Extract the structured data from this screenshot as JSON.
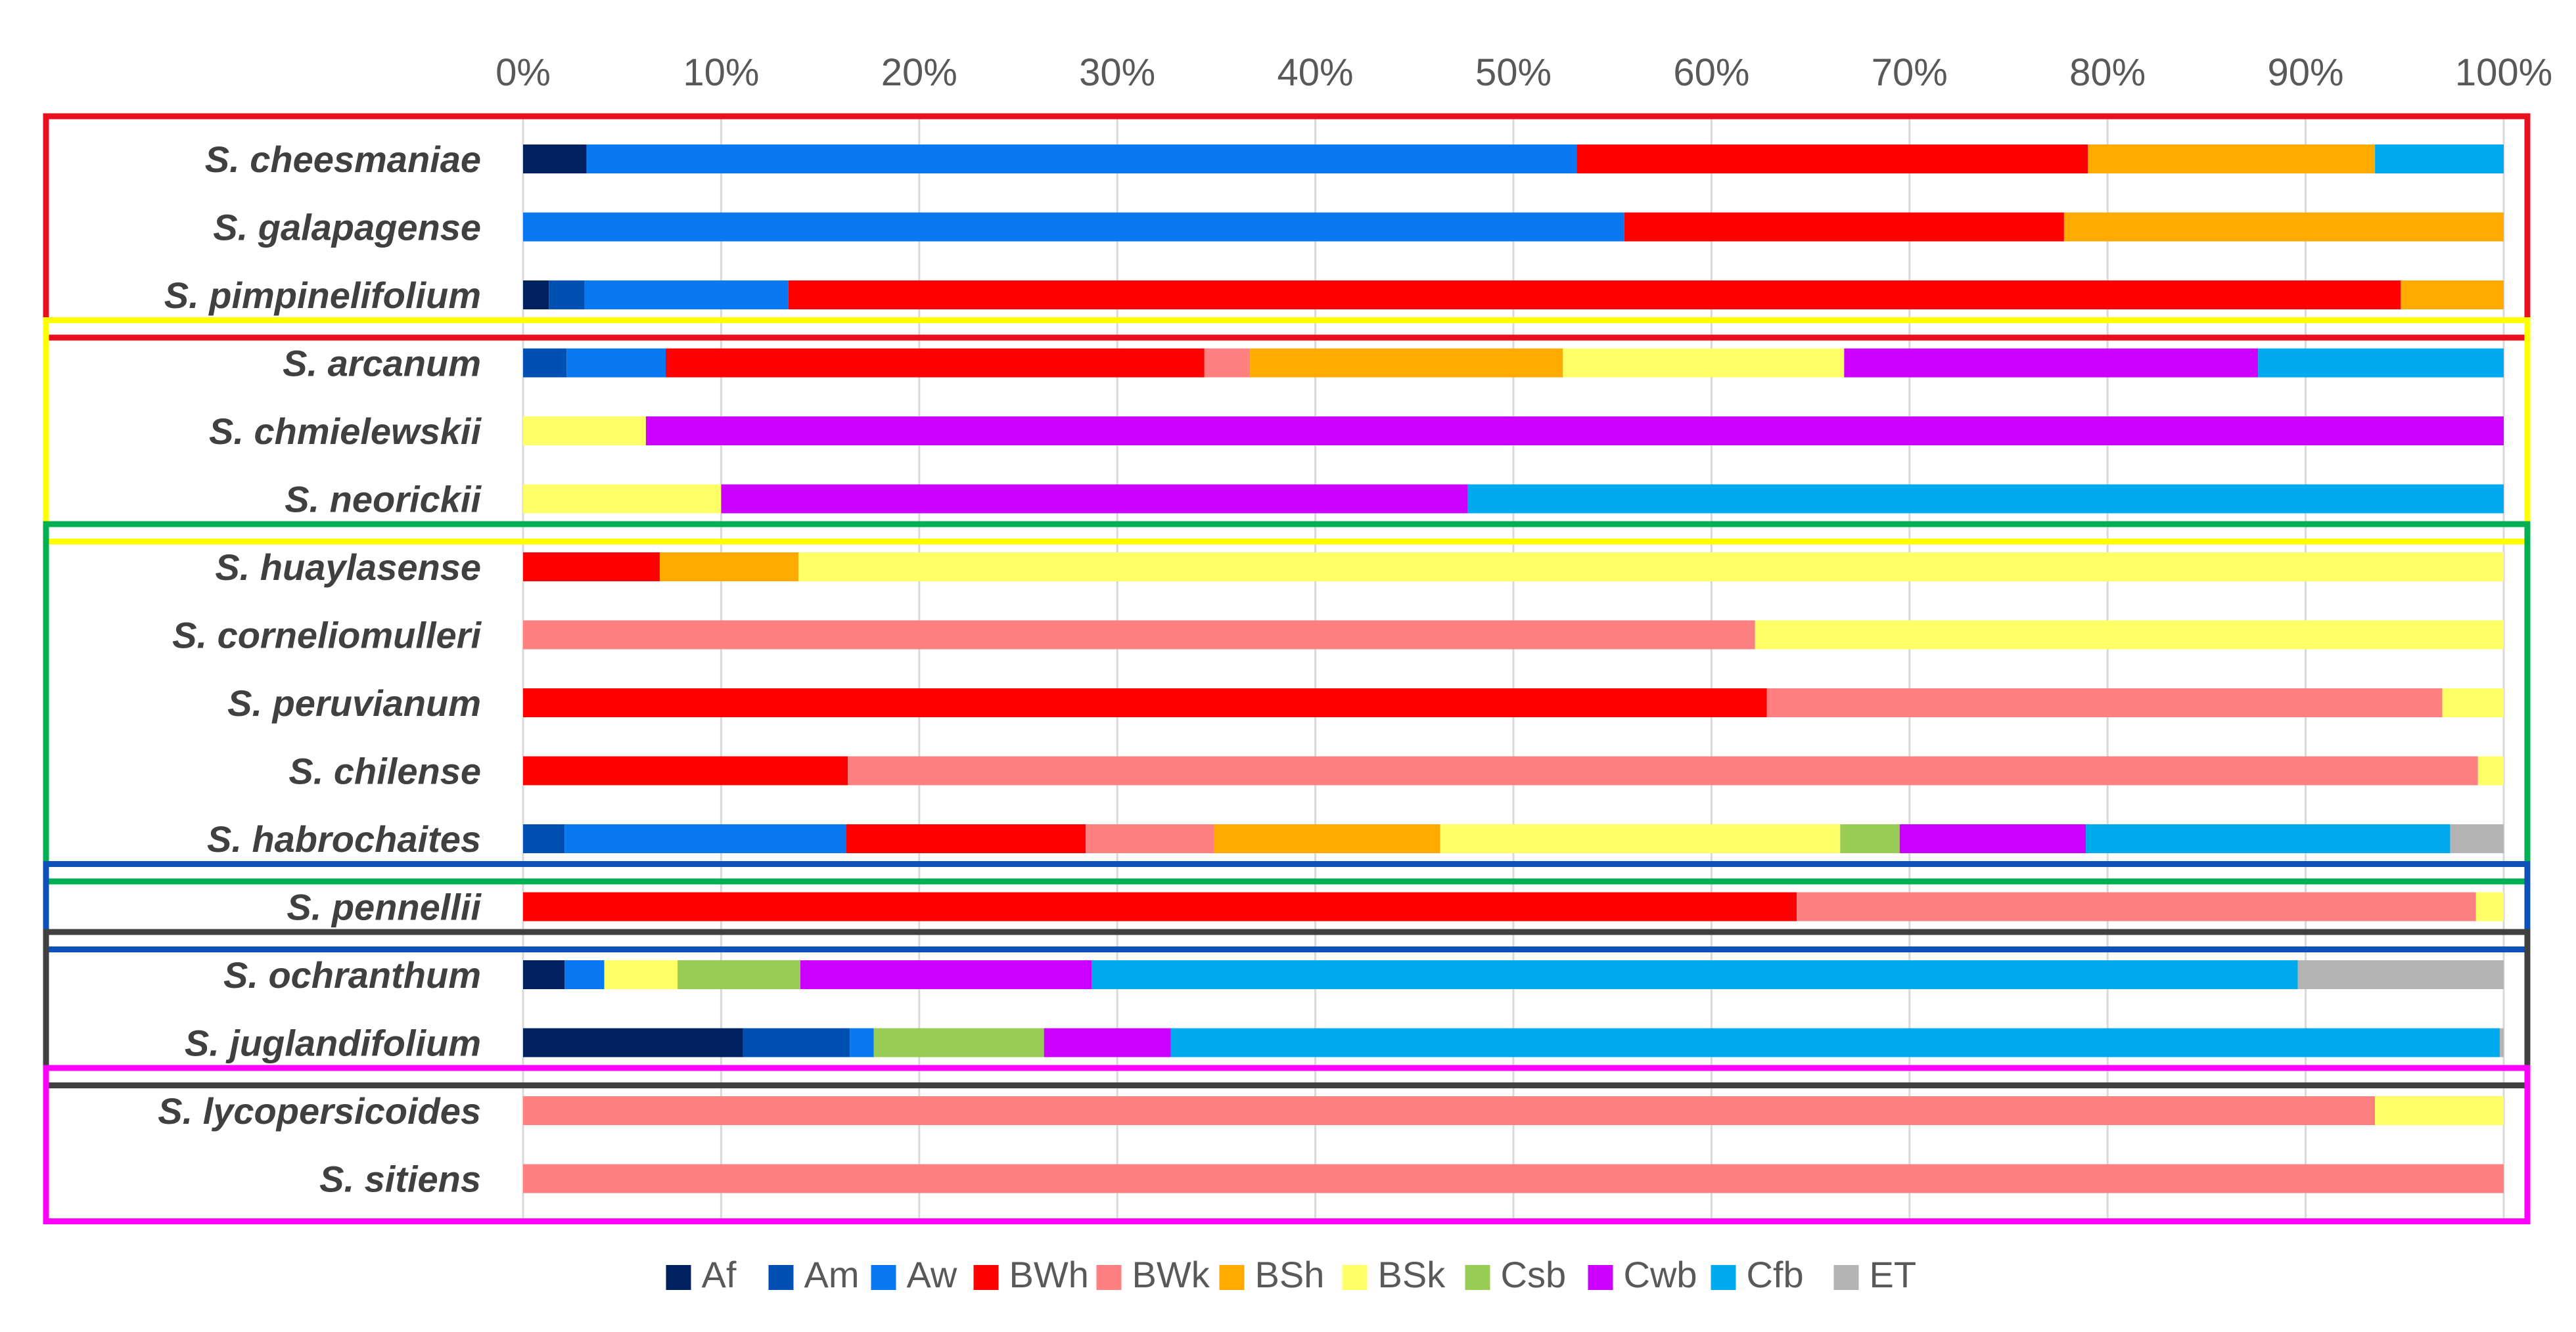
{
  "chart_data": {
    "type": "bar",
    "orientation": "horizontal",
    "stacked": "percent",
    "title": "",
    "xlabel": "",
    "ylabel": "",
    "xlim": [
      0,
      100
    ],
    "x_ticks": [
      "0%",
      "10%",
      "20%",
      "30%",
      "40%",
      "50%",
      "60%",
      "70%",
      "80%",
      "90%",
      "100%"
    ],
    "grid": true,
    "legend_position": "bottom",
    "series_colors": {
      "Af": "#002060",
      "Am": "#0050b4",
      "Aw": "#0a78f0",
      "BWh": "#ff0000",
      "BWk": "#ff8080",
      "BSh": "#ffaa00",
      "BSk": "#ffff66",
      "Csb": "#99cc55",
      "Cwb": "#cc00ff",
      "Cfb": "#00aaee",
      "ET": "#b4b4b4"
    },
    "legend": [
      "Af",
      "Am",
      "Aw",
      "BWh",
      "BWk",
      "BSh",
      "BSk",
      "Csb",
      "Cwb",
      "Cfb",
      "ET"
    ],
    "categories": [
      "S. cheesmaniae",
      "S. galapagense",
      "S. pimpinelifolium",
      "S. arcanum",
      "S. chmielewskii",
      "S. neorickii",
      "S. huaylasense",
      "S. corneliomulleri",
      "S. peruvianum",
      "S. chilense",
      "S. habrochaites",
      "S. pennellii",
      "S. ochranthum",
      "S. juglandifolium",
      "S. lycopersicoides",
      "S. sitiens"
    ],
    "rows": [
      {
        "Af": 3.2,
        "Aw": 50.0,
        "BWh": 25.8,
        "BSh": 14.5,
        "Cfb": 6.5
      },
      {
        "Aw": 55.6,
        "BWh": 22.2,
        "BSh": 22.2
      },
      {
        "Af": 1.3,
        "Am": 1.8,
        "Aw": 10.3,
        "BWh": 81.4,
        "BSh": 5.2
      },
      {
        "Am": 2.2,
        "Aw": 5.0,
        "BWh": 27.2,
        "BWk": 2.3,
        "BSh": 15.8,
        "BSk": 14.2,
        "Cwb": 20.9,
        "Cfb": 12.4
      },
      {
        "BSk": 6.2,
        "Cwb": 93.8
      },
      {
        "BSk": 10.0,
        "Cwb": 37.7,
        "Cfb": 52.3
      },
      {
        "BWh": 6.9,
        "BSh": 7.0,
        "BSk": 86.1
      },
      {
        "BWk": 62.2,
        "BSk": 37.8
      },
      {
        "BWh": 62.8,
        "BWk": 34.1,
        "BSk": 3.1
      },
      {
        "BWh": 16.4,
        "BWk": 82.3,
        "BSk": 1.3
      },
      {
        "Am": 2.1,
        "Aw": 14.2,
        "BWh": 12.1,
        "BWk": 6.5,
        "BSh": 11.4,
        "BSk": 20.2,
        "Csb": 3.0,
        "Cwb": 9.4,
        "Cfb": 18.4,
        "ET": 2.7
      },
      {
        "BWh": 64.3,
        "BWk": 34.3,
        "BSk": 1.4
      },
      {
        "Af": 2.1,
        "Aw": 2.0,
        "BSk": 3.7,
        "Csb": 6.2,
        "Cwb": 14.7,
        "Cfb": 60.9,
        "ET": 10.4
      },
      {
        "Af": 11.1,
        "Am": 5.4,
        "Aw": 1.2,
        "Csb": 8.6,
        "Cwb": 6.4,
        "Cfb": 67.1,
        "ET": 0.2
      },
      {
        "BWk": 93.5,
        "BSk": 6.5
      },
      {
        "BWk": 100.0
      }
    ],
    "groups": [
      {
        "name": "group-red",
        "color": "#e8101f",
        "start": 0,
        "end": 2
      },
      {
        "name": "group-yellow",
        "color": "#ffff00",
        "start": 3,
        "end": 5
      },
      {
        "name": "group-green",
        "color": "#00b050",
        "start": 6,
        "end": 10
      },
      {
        "name": "group-blue",
        "color": "#0c50b8",
        "start": 11,
        "end": 11
      },
      {
        "name": "group-gray",
        "color": "#404040",
        "start": 12,
        "end": 13
      },
      {
        "name": "group-magenta",
        "color": "#ff00ff",
        "start": 14,
        "end": 15
      }
    ]
  }
}
